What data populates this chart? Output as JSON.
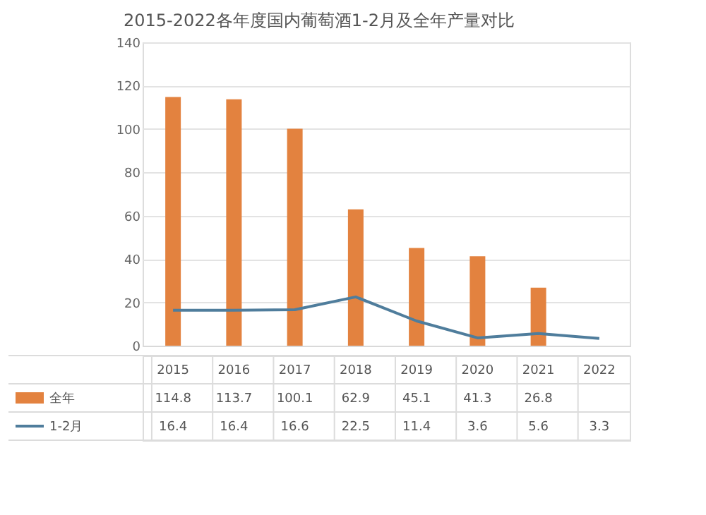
{
  "chart_data": {
    "type": "bar",
    "title": "2015-2022各年度国内葡萄酒1-2月及全年产量对比",
    "categories": [
      "2015",
      "2016",
      "2017",
      "2018",
      "2019",
      "2020",
      "2021",
      "2022"
    ],
    "series": [
      {
        "name": "全年",
        "color": "#e3823f",
        "values": [
          114.8,
          113.7,
          100.1,
          62.9,
          45.1,
          41.3,
          26.8,
          null
        ]
      },
      {
        "name": "1-2月",
        "type": "line",
        "color": "#4f7d9c",
        "values": [
          16.4,
          16.4,
          16.6,
          22.5,
          11.4,
          3.6,
          5.6,
          3.3
        ]
      }
    ],
    "ylim": [
      0,
      140
    ],
    "yticks": [
      0,
      20,
      40,
      60,
      80,
      100,
      120,
      140
    ],
    "grid": "y",
    "legend": "bottom",
    "data_labels": true,
    "tick_labels": "y",
    "marker": "none"
  }
}
